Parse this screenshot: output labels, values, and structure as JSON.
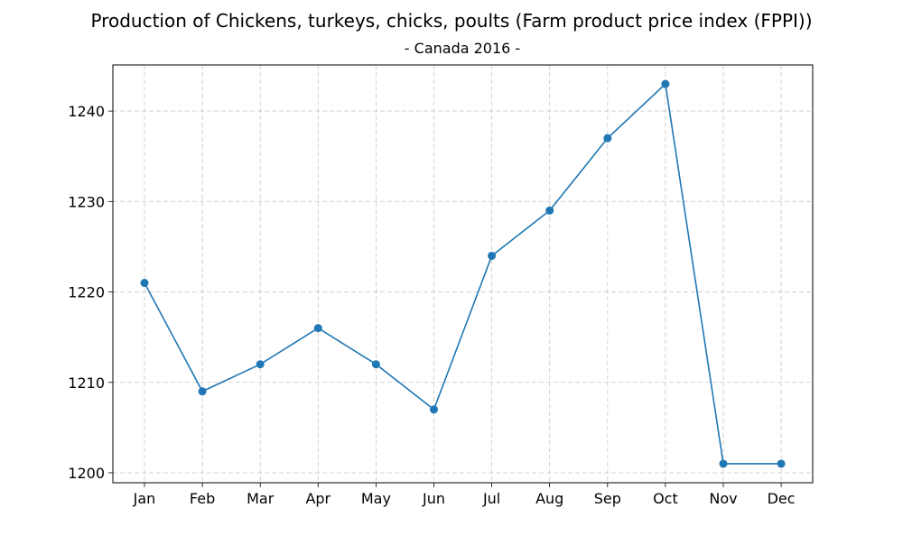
{
  "chart_data": {
    "type": "line",
    "title": "Production of Chickens, turkeys, chicks, poults (Farm product price index (FPPI))",
    "subtitle": "- Canada 2016 -",
    "xlabel": "",
    "ylabel": "",
    "categories": [
      "Jan",
      "Feb",
      "Mar",
      "Apr",
      "May",
      "Jun",
      "Jul",
      "Aug",
      "Sep",
      "Oct",
      "Nov",
      "Dec"
    ],
    "series": [
      {
        "values": [
          1221,
          1209,
          1212,
          1216,
          1212,
          1207,
          1224,
          1229,
          1237,
          1243,
          1201,
          1201
        ],
        "color": "#1f77b4",
        "marker": "circle"
      }
    ],
    "yticks": [
      1200,
      1210,
      1220,
      1230,
      1240
    ],
    "ylim": [
      1198.9,
      1245.1
    ],
    "grid": true,
    "legend": "none"
  }
}
